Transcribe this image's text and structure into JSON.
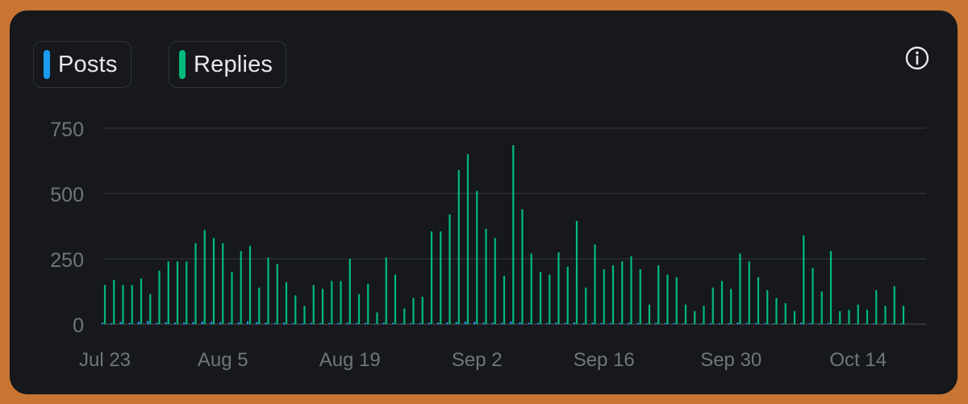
{
  "legend": {
    "posts_label": "Posts",
    "replies_label": "Replies",
    "posts_color": "#1d9bf0",
    "replies_color": "#00ba7c"
  },
  "info_icon": "info-circle-icon",
  "chart_data": {
    "type": "bar",
    "grid": true,
    "legend_position": "top-left",
    "ylim": [
      0,
      750
    ],
    "yticks": [
      0,
      250,
      500,
      750
    ],
    "xtick_labels": [
      "Jul 23",
      "Aug 5",
      "Aug 19",
      "Sep 2",
      "Sep 16",
      "Sep 30",
      "Oct 14"
    ],
    "xtick_index": [
      0,
      13,
      27,
      41,
      55,
      69,
      83
    ],
    "x": [
      "Jul 23",
      "Jul 24",
      "Jul 25",
      "Jul 26",
      "Jul 27",
      "Jul 28",
      "Jul 29",
      "Jul 30",
      "Jul 31",
      "Aug 1",
      "Aug 2",
      "Aug 3",
      "Aug 4",
      "Aug 5",
      "Aug 6",
      "Aug 7",
      "Aug 8",
      "Aug 9",
      "Aug 10",
      "Aug 11",
      "Aug 12",
      "Aug 13",
      "Aug 14",
      "Aug 15",
      "Aug 16",
      "Aug 17",
      "Aug 18",
      "Aug 19",
      "Aug 20",
      "Aug 21",
      "Aug 22",
      "Aug 23",
      "Aug 24",
      "Aug 25",
      "Aug 26",
      "Aug 27",
      "Aug 28",
      "Aug 29",
      "Aug 30",
      "Aug 31",
      "Sep 1",
      "Sep 2",
      "Sep 3",
      "Sep 4",
      "Sep 5",
      "Sep 6",
      "Sep 7",
      "Sep 8",
      "Sep 9",
      "Sep 10",
      "Sep 11",
      "Sep 12",
      "Sep 13",
      "Sep 14",
      "Sep 15",
      "Sep 16",
      "Sep 17",
      "Sep 18",
      "Sep 19",
      "Sep 20",
      "Sep 21",
      "Sep 22",
      "Sep 23",
      "Sep 24",
      "Sep 25",
      "Sep 26",
      "Sep 27",
      "Sep 28",
      "Sep 29",
      "Sep 30",
      "Oct 1",
      "Oct 2",
      "Oct 3",
      "Oct 4",
      "Oct 5",
      "Oct 6",
      "Oct 7",
      "Oct 8",
      "Oct 9",
      "Oct 10",
      "Oct 11",
      "Oct 12",
      "Oct 13",
      "Oct 14",
      "Oct 15",
      "Oct 16",
      "Oct 17",
      "Oct 18",
      "Oct 19",
      "Oct 20",
      "Oct 21"
    ],
    "series": [
      {
        "name": "Replies",
        "values": [
          150,
          170,
          150,
          150,
          175,
          115,
          205,
          240,
          240,
          240,
          310,
          360,
          330,
          310,
          200,
          280,
          300,
          140,
          255,
          230,
          160,
          110,
          70,
          150,
          135,
          165,
          165,
          250,
          115,
          155,
          45,
          255,
          190,
          60,
          100,
          105,
          355,
          355,
          420,
          590,
          650,
          510,
          365,
          330,
          185,
          685,
          440,
          270,
          200,
          190,
          275,
          220,
          395,
          140,
          305,
          210,
          225,
          240,
          260,
          210,
          75,
          225,
          190,
          180,
          75,
          50,
          70,
          140,
          165,
          135,
          270,
          240,
          180,
          130,
          100,
          80,
          50,
          340,
          215,
          125,
          280,
          50,
          55,
          75,
          55,
          130,
          70,
          145,
          70,
          0,
          0
        ]
      },
      {
        "name": "Posts",
        "values": [
          6,
          4,
          8,
          5,
          9,
          12,
          5,
          8,
          6,
          7,
          8,
          10,
          9,
          8,
          6,
          7,
          11,
          8,
          6,
          5,
          6,
          4,
          3,
          5,
          4,
          5,
          5,
          6,
          4,
          5,
          2,
          6,
          5,
          3,
          4,
          4,
          6,
          6,
          7,
          8,
          10,
          9,
          6,
          6,
          5,
          10,
          7,
          5,
          5,
          4,
          6,
          5,
          7,
          4,
          6,
          5,
          5,
          5,
          6,
          5,
          3,
          5,
          4,
          4,
          3,
          2,
          3,
          4,
          4,
          4,
          6,
          5,
          4,
          4,
          3,
          3,
          2,
          6,
          4,
          3,
          5,
          2,
          2,
          3,
          2,
          3,
          3,
          3,
          3,
          0,
          0
        ]
      }
    ]
  }
}
